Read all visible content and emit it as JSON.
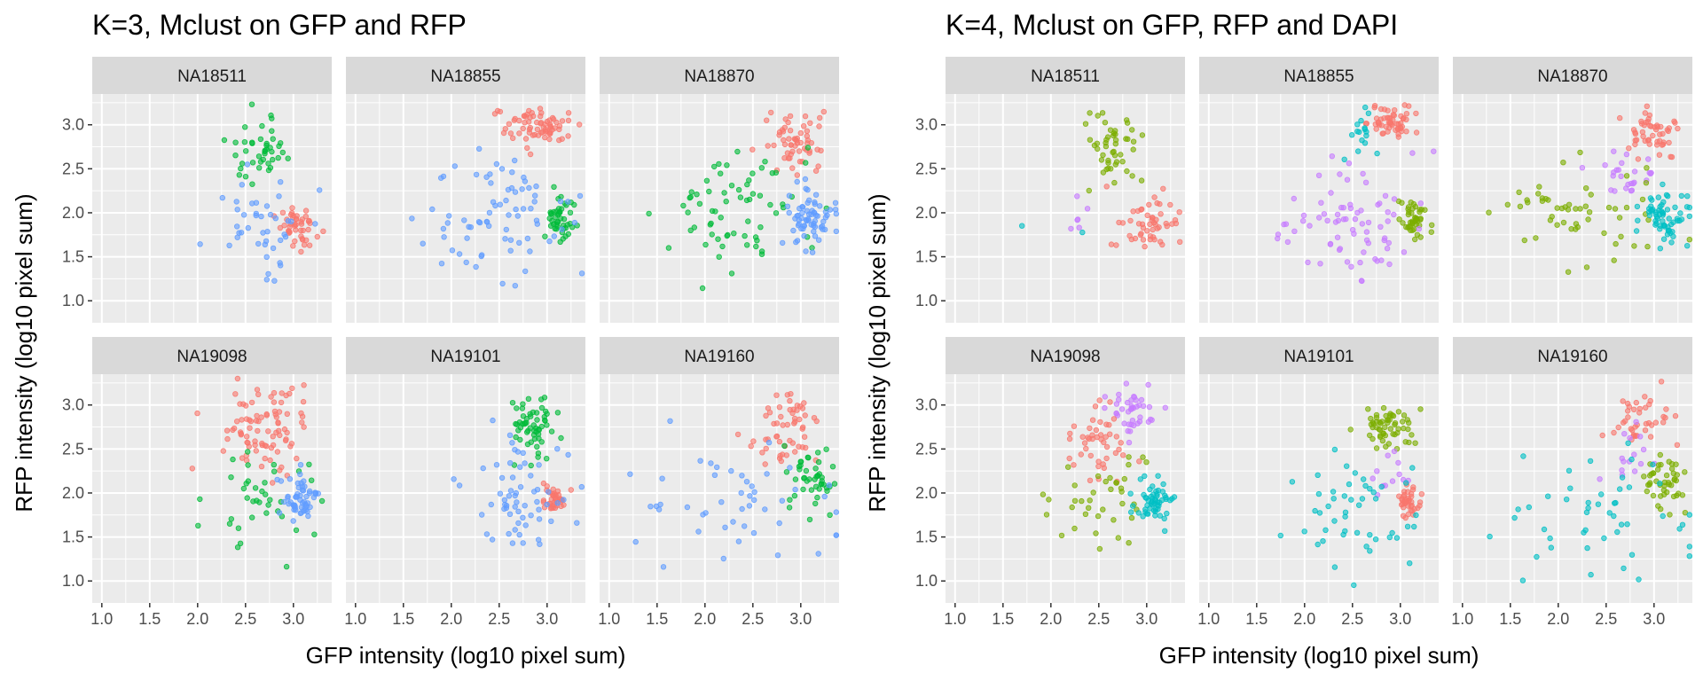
{
  "chart_data": [
    {
      "type": "scatter",
      "title": "K=3, Mclust on GFP and RFP",
      "xlabel": "GFP intensity (log10 pixel sum)",
      "ylabel": "RFP intensity (log10 pixel sum)",
      "xlim": [
        0.9,
        3.4
      ],
      "ylim": [
        0.75,
        3.35
      ],
      "x_ticks": [
        "1.0",
        "1.5",
        "2.0",
        "2.5",
        "3.0"
      ],
      "y_ticks": [
        "1.0",
        "1.5",
        "2.0",
        "2.5",
        "3.0"
      ],
      "grid": true,
      "legend": "none",
      "cluster_colors": [
        "#f8766d",
        "#00ba38",
        "#619cff"
      ],
      "facets": [
        {
          "name": "NA18511",
          "clusters": [
            {
              "color": "#f8766d",
              "cx": 3.05,
              "cy": 1.82,
              "sx": 0.1,
              "sy": 0.12,
              "n": 45
            },
            {
              "color": "#00ba38",
              "cx": 2.65,
              "cy": 2.72,
              "sx": 0.15,
              "sy": 0.17,
              "n": 42
            },
            {
              "color": "#619cff",
              "cx": 2.65,
              "cy": 1.95,
              "sx": 0.28,
              "sy": 0.28,
              "n": 42
            }
          ]
        },
        {
          "name": "NA18855",
          "clusters": [
            {
              "color": "#f8766d",
              "cx": 2.88,
              "cy": 2.98,
              "sx": 0.17,
              "sy": 0.12,
              "n": 70
            },
            {
              "color": "#00ba38",
              "cx": 3.15,
              "cy": 1.95,
              "sx": 0.07,
              "sy": 0.12,
              "n": 45
            },
            {
              "color": "#619cff",
              "cx": 2.5,
              "cy": 1.9,
              "sx": 0.4,
              "sy": 0.35,
              "n": 75
            }
          ]
        },
        {
          "name": "NA18870",
          "clusters": [
            {
              "color": "#f8766d",
              "cx": 2.95,
              "cy": 2.8,
              "sx": 0.17,
              "sy": 0.2,
              "n": 58
            },
            {
              "color": "#00ba38",
              "cx": 2.4,
              "cy": 2.05,
              "sx": 0.4,
              "sy": 0.35,
              "n": 68
            },
            {
              "color": "#619cff",
              "cx": 3.12,
              "cy": 1.95,
              "sx": 0.12,
              "sy": 0.17,
              "n": 68
            }
          ]
        },
        {
          "name": "NA19098",
          "clusters": [
            {
              "color": "#f8766d",
              "cx": 2.68,
              "cy": 2.75,
              "sx": 0.22,
              "sy": 0.22,
              "n": 88
            },
            {
              "color": "#00ba38",
              "cx": 2.62,
              "cy": 1.95,
              "sx": 0.3,
              "sy": 0.3,
              "n": 38
            },
            {
              "color": "#619cff",
              "cx": 3.08,
              "cy": 1.92,
              "sx": 0.1,
              "sy": 0.12,
              "n": 55
            }
          ]
        },
        {
          "name": "NA19101",
          "clusters": [
            {
              "color": "#f8766d",
              "cx": 3.08,
              "cy": 1.92,
              "sx": 0.06,
              "sy": 0.08,
              "n": 38
            },
            {
              "color": "#00ba38",
              "cx": 2.85,
              "cy": 2.75,
              "sx": 0.12,
              "sy": 0.17,
              "n": 58
            },
            {
              "color": "#619cff",
              "cx": 2.75,
              "cy": 1.95,
              "sx": 0.28,
              "sy": 0.35,
              "n": 62
            }
          ]
        },
        {
          "name": "NA19160",
          "clusters": [
            {
              "color": "#f8766d",
              "cx": 2.85,
              "cy": 2.75,
              "sx": 0.18,
              "sy": 0.2,
              "n": 55
            },
            {
              "color": "#00ba38",
              "cx": 3.12,
              "cy": 2.15,
              "sx": 0.12,
              "sy": 0.2,
              "n": 45
            },
            {
              "color": "#619cff",
              "cx": 2.4,
              "cy": 1.85,
              "sx": 0.55,
              "sy": 0.35,
              "n": 48
            }
          ]
        }
      ]
    },
    {
      "type": "scatter",
      "title": "K=4, Mclust on GFP, RFP and DAPI",
      "xlabel": "GFP intensity (log10 pixel sum)",
      "ylabel": "RFP intensity (log10 pixel sum)",
      "xlim": [
        0.9,
        3.4
      ],
      "ylim": [
        0.75,
        3.35
      ],
      "x_ticks": [
        "1.0",
        "1.5",
        "2.0",
        "2.5",
        "3.0"
      ],
      "y_ticks": [
        "1.0",
        "1.5",
        "2.0",
        "2.5",
        "3.0"
      ],
      "grid": true,
      "legend": "none",
      "cluster_colors": [
        "#f8766d",
        "#7cae00",
        "#00bfc4",
        "#c77cff"
      ],
      "facets": [
        {
          "name": "NA18511",
          "clusters": [
            {
              "color": "#7cae00",
              "cx": 2.62,
              "cy": 2.68,
              "sx": 0.17,
              "sy": 0.2,
              "n": 48
            },
            {
              "color": "#f8766d",
              "cx": 3.0,
              "cy": 1.85,
              "sx": 0.15,
              "sy": 0.17,
              "n": 52
            },
            {
              "color": "#c77cff",
              "cx": 2.38,
              "cy": 1.95,
              "sx": 0.12,
              "sy": 0.12,
              "n": 6
            },
            {
              "color": "#00bfc4",
              "cx": 1.6,
              "cy": 1.8,
              "sx": 0.3,
              "sy": 0.1,
              "n": 2
            }
          ]
        },
        {
          "name": "NA18855",
          "clusters": [
            {
              "color": "#f8766d",
              "cx": 2.92,
              "cy": 3.02,
              "sx": 0.13,
              "sy": 0.1,
              "n": 55
            },
            {
              "color": "#00bfc4",
              "cx": 2.6,
              "cy": 2.85,
              "sx": 0.08,
              "sy": 0.12,
              "n": 16
            },
            {
              "color": "#7cae00",
              "cx": 3.15,
              "cy": 1.95,
              "sx": 0.07,
              "sy": 0.12,
              "n": 45
            },
            {
              "color": "#c77cff",
              "cx": 2.5,
              "cy": 1.9,
              "sx": 0.4,
              "sy": 0.35,
              "n": 75
            }
          ]
        },
        {
          "name": "NA18870",
          "clusters": [
            {
              "color": "#f8766d",
              "cx": 3.0,
              "cy": 2.85,
              "sx": 0.13,
              "sy": 0.15,
              "n": 50
            },
            {
              "color": "#c77cff",
              "cx": 2.75,
              "cy": 2.45,
              "sx": 0.17,
              "sy": 0.15,
              "n": 25
            },
            {
              "color": "#7cae00",
              "cx": 2.3,
              "cy": 2.0,
              "sx": 0.4,
              "sy": 0.3,
              "n": 55
            },
            {
              "color": "#00bfc4",
              "cx": 3.12,
              "cy": 1.95,
              "sx": 0.12,
              "sy": 0.17,
              "n": 65
            }
          ]
        },
        {
          "name": "NA19098",
          "clusters": [
            {
              "color": "#c77cff",
              "cx": 2.85,
              "cy": 2.95,
              "sx": 0.12,
              "sy": 0.15,
              "n": 42
            },
            {
              "color": "#f8766d",
              "cx": 2.5,
              "cy": 2.55,
              "sx": 0.18,
              "sy": 0.22,
              "n": 45
            },
            {
              "color": "#7cae00",
              "cx": 2.62,
              "cy": 1.95,
              "sx": 0.3,
              "sy": 0.3,
              "n": 38
            },
            {
              "color": "#00bfc4",
              "cx": 3.08,
              "cy": 1.92,
              "sx": 0.1,
              "sy": 0.12,
              "n": 55
            }
          ]
        },
        {
          "name": "NA19101",
          "clusters": [
            {
              "color": "#7cae00",
              "cx": 2.85,
              "cy": 2.75,
              "sx": 0.12,
              "sy": 0.17,
              "n": 58
            },
            {
              "color": "#f8766d",
              "cx": 3.08,
              "cy": 1.92,
              "sx": 0.06,
              "sy": 0.08,
              "n": 38
            },
            {
              "color": "#c77cff",
              "cx": 2.95,
              "cy": 2.2,
              "sx": 0.12,
              "sy": 0.15,
              "n": 12
            },
            {
              "color": "#00bfc4",
              "cx": 2.55,
              "cy": 1.75,
              "sx": 0.35,
              "sy": 0.35,
              "n": 48
            }
          ]
        },
        {
          "name": "NA19160",
          "clusters": [
            {
              "color": "#f8766d",
              "cx": 2.88,
              "cy": 2.85,
              "sx": 0.15,
              "sy": 0.15,
              "n": 40
            },
            {
              "color": "#c77cff",
              "cx": 2.75,
              "cy": 2.45,
              "sx": 0.12,
              "sy": 0.15,
              "n": 15
            },
            {
              "color": "#7cae00",
              "cx": 3.12,
              "cy": 2.15,
              "sx": 0.12,
              "sy": 0.2,
              "n": 45
            },
            {
              "color": "#00bfc4",
              "cx": 2.4,
              "cy": 1.85,
              "sx": 0.55,
              "sy": 0.35,
              "n": 48
            }
          ]
        }
      ]
    }
  ]
}
